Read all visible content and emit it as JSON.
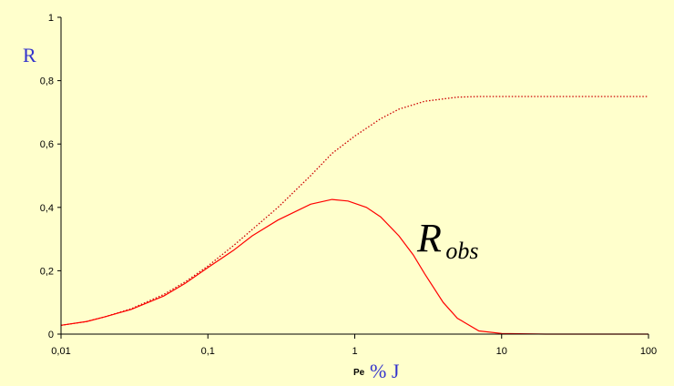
{
  "chart_data": {
    "type": "line",
    "x_scale": "log",
    "xlim": [
      0.01,
      100
    ],
    "ylim": [
      0,
      1
    ],
    "x_ticks": [
      "0,01",
      "0,1",
      "1",
      "10",
      "100"
    ],
    "y_ticks": [
      "0",
      "0,2",
      "0,4",
      "0,6",
      "0,8",
      "1"
    ],
    "ylabel": "R",
    "xlabel_small": "Pe",
    "xlabel": "% J",
    "annotation": {
      "main": "R",
      "sub": "obs"
    },
    "grid": false,
    "series": [
      {
        "name": "",
        "style": "dotted",
        "color": "#cc0000",
        "x": [
          0.01,
          0.015,
          0.02,
          0.03,
          0.05,
          0.07,
          0.1,
          0.15,
          0.2,
          0.3,
          0.5,
          0.7,
          1,
          1.5,
          2,
          3,
          5,
          7,
          10,
          20,
          50,
          100
        ],
        "y": [
          0.028,
          0.04,
          0.055,
          0.08,
          0.125,
          0.165,
          0.215,
          0.28,
          0.33,
          0.4,
          0.5,
          0.57,
          0.625,
          0.68,
          0.71,
          0.735,
          0.748,
          0.75,
          0.75,
          0.75,
          0.75,
          0.75
        ]
      },
      {
        "name": "R_obs",
        "style": "solid",
        "color": "#ff0000",
        "x": [
          0.01,
          0.015,
          0.02,
          0.03,
          0.05,
          0.07,
          0.1,
          0.15,
          0.2,
          0.3,
          0.5,
          0.7,
          0.9,
          1.2,
          1.5,
          2,
          2.5,
          3,
          4,
          5,
          7,
          10,
          20,
          50,
          100
        ],
        "y": [
          0.028,
          0.04,
          0.055,
          0.078,
          0.12,
          0.16,
          0.21,
          0.265,
          0.31,
          0.36,
          0.41,
          0.425,
          0.42,
          0.4,
          0.37,
          0.31,
          0.25,
          0.19,
          0.1,
          0.05,
          0.01,
          0.002,
          0,
          0,
          0
        ]
      }
    ]
  }
}
